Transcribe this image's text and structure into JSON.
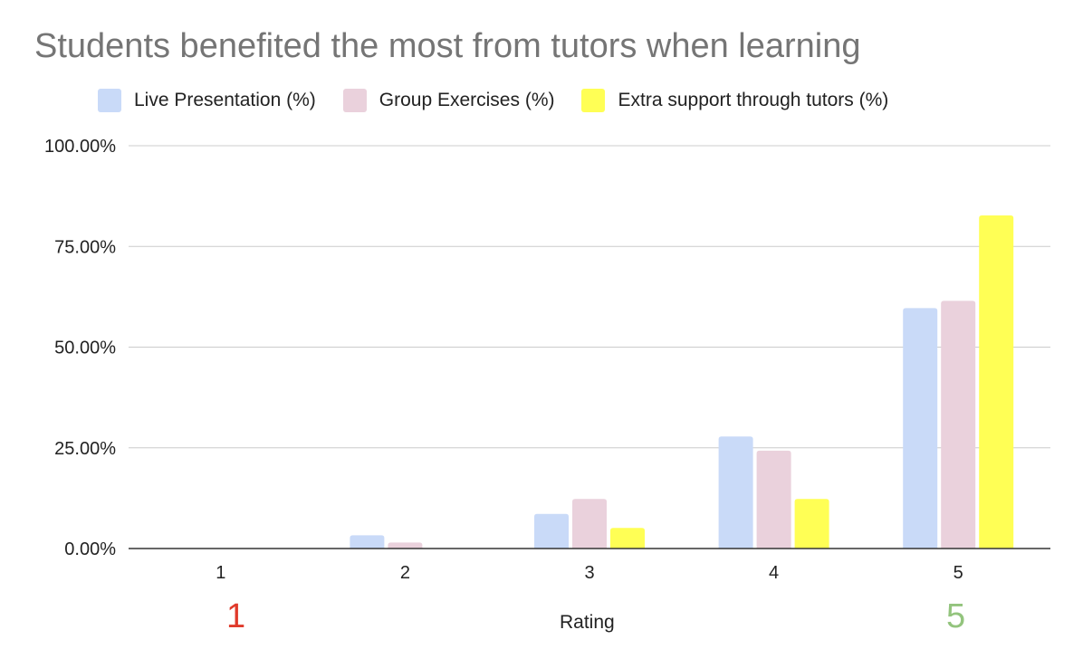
{
  "chart_data": {
    "type": "bar",
    "title": "Students benefited the most from tutors when learning",
    "xlabel": "Rating",
    "ylabel": "",
    "categories": [
      "1",
      "2",
      "3",
      "4",
      "5"
    ],
    "yticks": [
      "0.00%",
      "25.00%",
      "50.00%",
      "75.00%",
      "100.00%"
    ],
    "ylim": [
      0,
      100
    ],
    "grid": true,
    "legend_position": "top",
    "series": [
      {
        "name": "Live Presentation (%)",
        "color": "#c9daf8",
        "values": [
          0,
          3.3,
          8.6,
          27.8,
          59.7
        ]
      },
      {
        "name": "Group Exercises (%)",
        "color": "#ead1dc",
        "values": [
          0,
          1.5,
          12.3,
          24.3,
          61.5
        ]
      },
      {
        "name": "Extra support through tutors (%)",
        "color": "#ffff55",
        "values": [
          0,
          0,
          5.1,
          12.3,
          82.7
        ]
      }
    ],
    "annotations": [
      {
        "text": "1",
        "color": "#e03a2b"
      },
      {
        "text": "5",
        "color": "#93c47d"
      }
    ]
  }
}
